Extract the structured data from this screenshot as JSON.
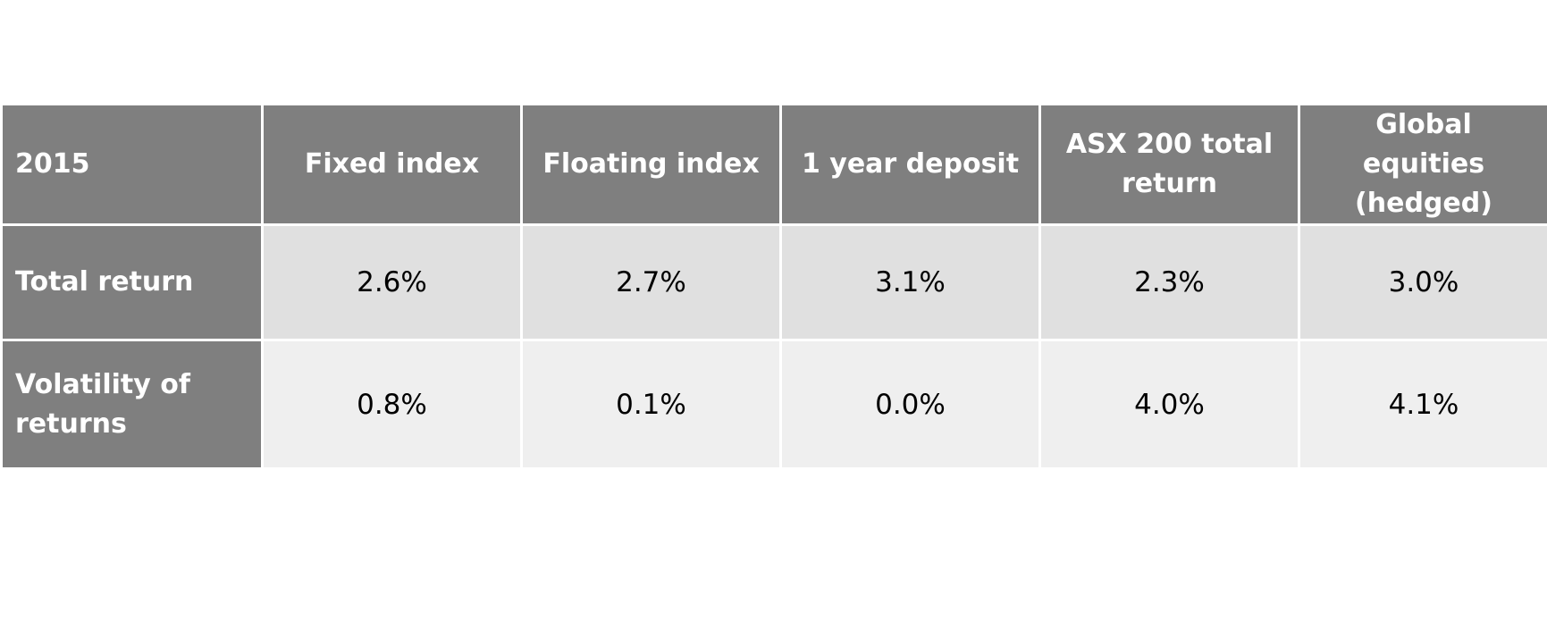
{
  "chart_data": {
    "type": "table",
    "columns": [
      "2015",
      "Fixed index",
      "Floating index",
      "1 year deposit",
      "ASX 200 total return",
      "Global equities (hedged)"
    ],
    "rows": [
      {
        "label": "Total return",
        "values": [
          "2.6%",
          "2.7%",
          "3.1%",
          "2.3%",
          "3.0%"
        ]
      },
      {
        "label": "Volatility of returns",
        "values": [
          "0.8%",
          "0.1%",
          "0.0%",
          "4.0%",
          "4.1%"
        ]
      }
    ],
    "colors": {
      "header_bg": "#7f7f7f",
      "row_odd_bg": "#e0e0e0",
      "row_even_bg": "#efefef",
      "header_text": "#ffffff",
      "cell_text": "#000000"
    }
  }
}
